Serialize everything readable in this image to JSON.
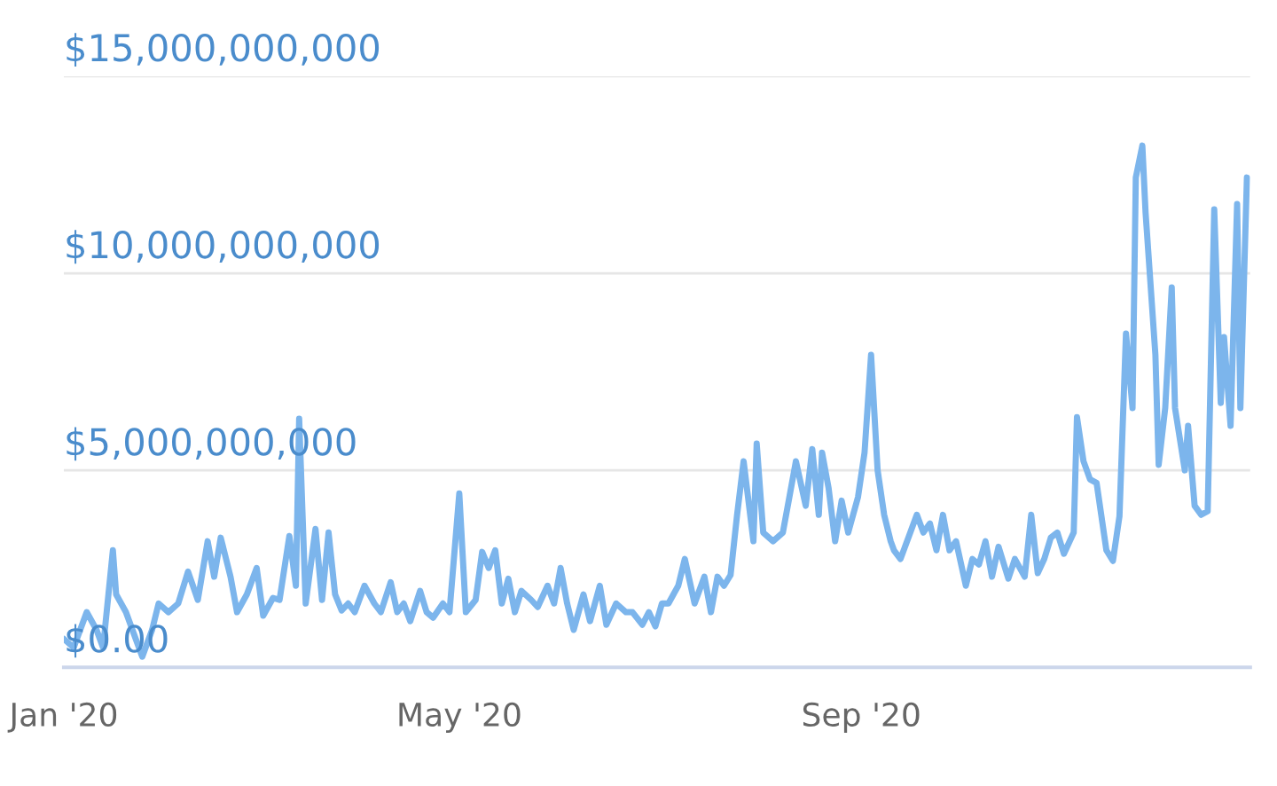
{
  "chart_data": {
    "type": "line",
    "x": [
      "2020-01-01",
      "2020-01-04",
      "2020-01-08",
      "2020-01-11",
      "2020-01-13",
      "2020-01-16",
      "2020-01-17",
      "2020-01-20",
      "2020-01-23",
      "2020-01-25",
      "2020-01-28",
      "2020-01-30",
      "2020-02-02",
      "2020-02-05",
      "2020-02-08",
      "2020-02-11",
      "2020-02-14",
      "2020-02-16",
      "2020-02-18",
      "2020-02-21",
      "2020-02-23",
      "2020-02-26",
      "2020-02-29",
      "2020-03-02",
      "2020-03-05",
      "2020-03-07",
      "2020-03-10",
      "2020-03-12",
      "2020-03-13",
      "2020-03-15",
      "2020-03-18",
      "2020-03-20",
      "2020-03-22",
      "2020-03-24",
      "2020-03-26",
      "2020-03-28",
      "2020-03-30",
      "2020-04-02",
      "2020-04-05",
      "2020-04-07",
      "2020-04-10",
      "2020-04-12",
      "2020-04-14",
      "2020-04-16",
      "2020-04-19",
      "2020-04-21",
      "2020-04-23",
      "2020-04-26",
      "2020-04-28",
      "2020-05-01",
      "2020-05-03",
      "2020-05-06",
      "2020-05-08",
      "2020-05-10",
      "2020-05-12",
      "2020-05-14",
      "2020-05-16",
      "2020-05-18",
      "2020-05-20",
      "2020-05-23",
      "2020-05-25",
      "2020-05-28",
      "2020-05-30",
      "2020-06-01",
      "2020-06-03",
      "2020-06-05",
      "2020-06-08",
      "2020-06-10",
      "2020-06-13",
      "2020-06-15",
      "2020-06-18",
      "2020-06-21",
      "2020-06-23",
      "2020-06-26",
      "2020-06-28",
      "2020-06-30",
      "2020-07-02",
      "2020-07-04",
      "2020-07-07",
      "2020-07-09",
      "2020-07-12",
      "2020-07-15",
      "2020-07-17",
      "2020-07-19",
      "2020-07-21",
      "2020-07-23",
      "2020-07-25",
      "2020-07-27",
      "2020-07-30",
      "2020-07-31",
      "2020-08-02",
      "2020-08-05",
      "2020-08-08",
      "2020-08-10",
      "2020-08-12",
      "2020-08-15",
      "2020-08-17",
      "2020-08-19",
      "2020-08-20",
      "2020-08-22",
      "2020-08-24",
      "2020-08-26",
      "2020-08-28",
      "2020-08-31",
      "2020-09-02",
      "2020-09-04",
      "2020-09-06",
      "2020-09-08",
      "2020-09-10",
      "2020-09-11",
      "2020-09-13",
      "2020-09-16",
      "2020-09-18",
      "2020-09-20",
      "2020-09-22",
      "2020-09-24",
      "2020-09-26",
      "2020-09-28",
      "2020-09-30",
      "2020-10-03",
      "2020-10-05",
      "2020-10-07",
      "2020-10-09",
      "2020-10-11",
      "2020-10-13",
      "2020-10-16",
      "2020-10-18",
      "2020-10-21",
      "2020-10-23",
      "2020-10-25",
      "2020-10-27",
      "2020-10-29",
      "2020-10-31",
      "2020-11-02",
      "2020-11-05",
      "2020-11-06",
      "2020-11-08",
      "2020-11-10",
      "2020-11-12",
      "2020-11-15",
      "2020-11-17",
      "2020-11-19",
      "2020-11-21",
      "2020-11-23",
      "2020-11-24",
      "2020-11-26",
      "2020-11-27",
      "2020-11-30",
      "2020-12-01",
      "2020-12-03",
      "2020-12-05",
      "2020-12-06",
      "2020-12-09",
      "2020-12-10",
      "2020-12-12",
      "2020-12-14",
      "2020-12-16",
      "2020-12-18",
      "2020-12-20",
      "2020-12-21",
      "2020-12-23",
      "2020-12-25",
      "2020-12-26",
      "2020-12-28"
    ],
    "series": [
      {
        "color": "#7cb5ec",
        "values": [
          720000000.0,
          500000000.0,
          1400000000.0,
          950000000.0,
          500000000.0,
          2970000000.0,
          1850000000.0,
          1400000000.0,
          720000000.0,
          270000000.0,
          950000000.0,
          1620000000.0,
          1400000000.0,
          1620000000.0,
          2430000000.0,
          1710000000.0,
          3200000000.0,
          2300000000.0,
          3290000000.0,
          2300000000.0,
          1400000000.0,
          1850000000.0,
          2520000000.0,
          1310000000.0,
          1760000000.0,
          1710000000.0,
          3330000000.0,
          2070000000.0,
          6310000000.0,
          1620000000.0,
          3510000000.0,
          1710000000.0,
          3420000000.0,
          1850000000.0,
          1440000000.0,
          1620000000.0,
          1400000000.0,
          2070000000.0,
          1620000000.0,
          1400000000.0,
          2160000000.0,
          1400000000.0,
          1620000000.0,
          1170000000.0,
          1940000000.0,
          1400000000.0,
          1260000000.0,
          1620000000.0,
          1400000000.0,
          4410000000.0,
          1400000000.0,
          1710000000.0,
          2930000000.0,
          2520000000.0,
          2970000000.0,
          1620000000.0,
          2250000000.0,
          1400000000.0,
          1940000000.0,
          1710000000.0,
          1530000000.0,
          2070000000.0,
          1620000000.0,
          2520000000.0,
          1620000000.0,
          950000000.0,
          1850000000.0,
          1170000000.0,
          2070000000.0,
          1080000000.0,
          1620000000.0,
          1400000000.0,
          1400000000.0,
          1080000000.0,
          1400000000.0,
          1040000000.0,
          1620000000.0,
          1620000000.0,
          2070000000.0,
          2750000000.0,
          1620000000.0,
          2300000000.0,
          1400000000.0,
          2300000000.0,
          2070000000.0,
          2340000000.0,
          3870000000.0,
          5230000000.0,
          3200000000.0,
          5680000000.0,
          3420000000.0,
          3200000000.0,
          3420000000.0,
          4320000000.0,
          5230000000.0,
          4100000000.0,
          5540000000.0,
          3870000000.0,
          5450000000.0,
          4550000000.0,
          3200000000.0,
          4230000000.0,
          3420000000.0,
          4320000000.0,
          5450000000.0,
          7930000000.0,
          5000000000.0,
          3870000000.0,
          3200000000.0,
          2970000000.0,
          2750000000.0,
          3420000000.0,
          3870000000.0,
          3420000000.0,
          3650000000.0,
          2970000000.0,
          3870000000.0,
          2970000000.0,
          3200000000.0,
          2070000000.0,
          2750000000.0,
          2610000000.0,
          3200000000.0,
          2300000000.0,
          3060000000.0,
          2250000000.0,
          2750000000.0,
          2300000000.0,
          3870000000.0,
          2390000000.0,
          2750000000.0,
          3290000000.0,
          3420000000.0,
          2880000000.0,
          3420000000.0,
          6350000000.0,
          5230000000.0,
          4770000000.0,
          4680000000.0,
          2970000000.0,
          2700000000.0,
          3830000000.0,
          8470000000.0,
          6580000000.0,
          12430000000.0,
          13240000000.0,
          11530000000.0,
          7930000000.0,
          5140000000.0,
          6580000000.0,
          9640000000.0,
          6580000000.0,
          5000000000.0,
          6130000000.0,
          4100000000.0,
          3870000000.0,
          3960000000.0,
          11620000000.0,
          6710000000.0,
          8380000000.0,
          6130000000.0,
          11760000000.0,
          6580000000.0,
          12430000000.0
        ]
      }
    ],
    "xlim": [
      "2020-01-01",
      "2020-12-29"
    ],
    "xticks": [
      {
        "value": "2020-01-01",
        "label": "Jan '20"
      },
      {
        "value": "2020-05-01",
        "label": "May '20"
      },
      {
        "value": "2020-09-01",
        "label": "Sep '20"
      }
    ],
    "ylim": [
      0,
      15000000000
    ],
    "yticks": [
      {
        "value": 0,
        "label": "$0.00"
      },
      {
        "value": 5000000000,
        "label": "$5,000,000,000"
      },
      {
        "value": 10000000000,
        "label": "$10,000,000,000"
      },
      {
        "value": 15000000000,
        "label": "$15,000,000,000"
      }
    ],
    "grid": "y",
    "marker": "none",
    "line_style": "solid"
  }
}
